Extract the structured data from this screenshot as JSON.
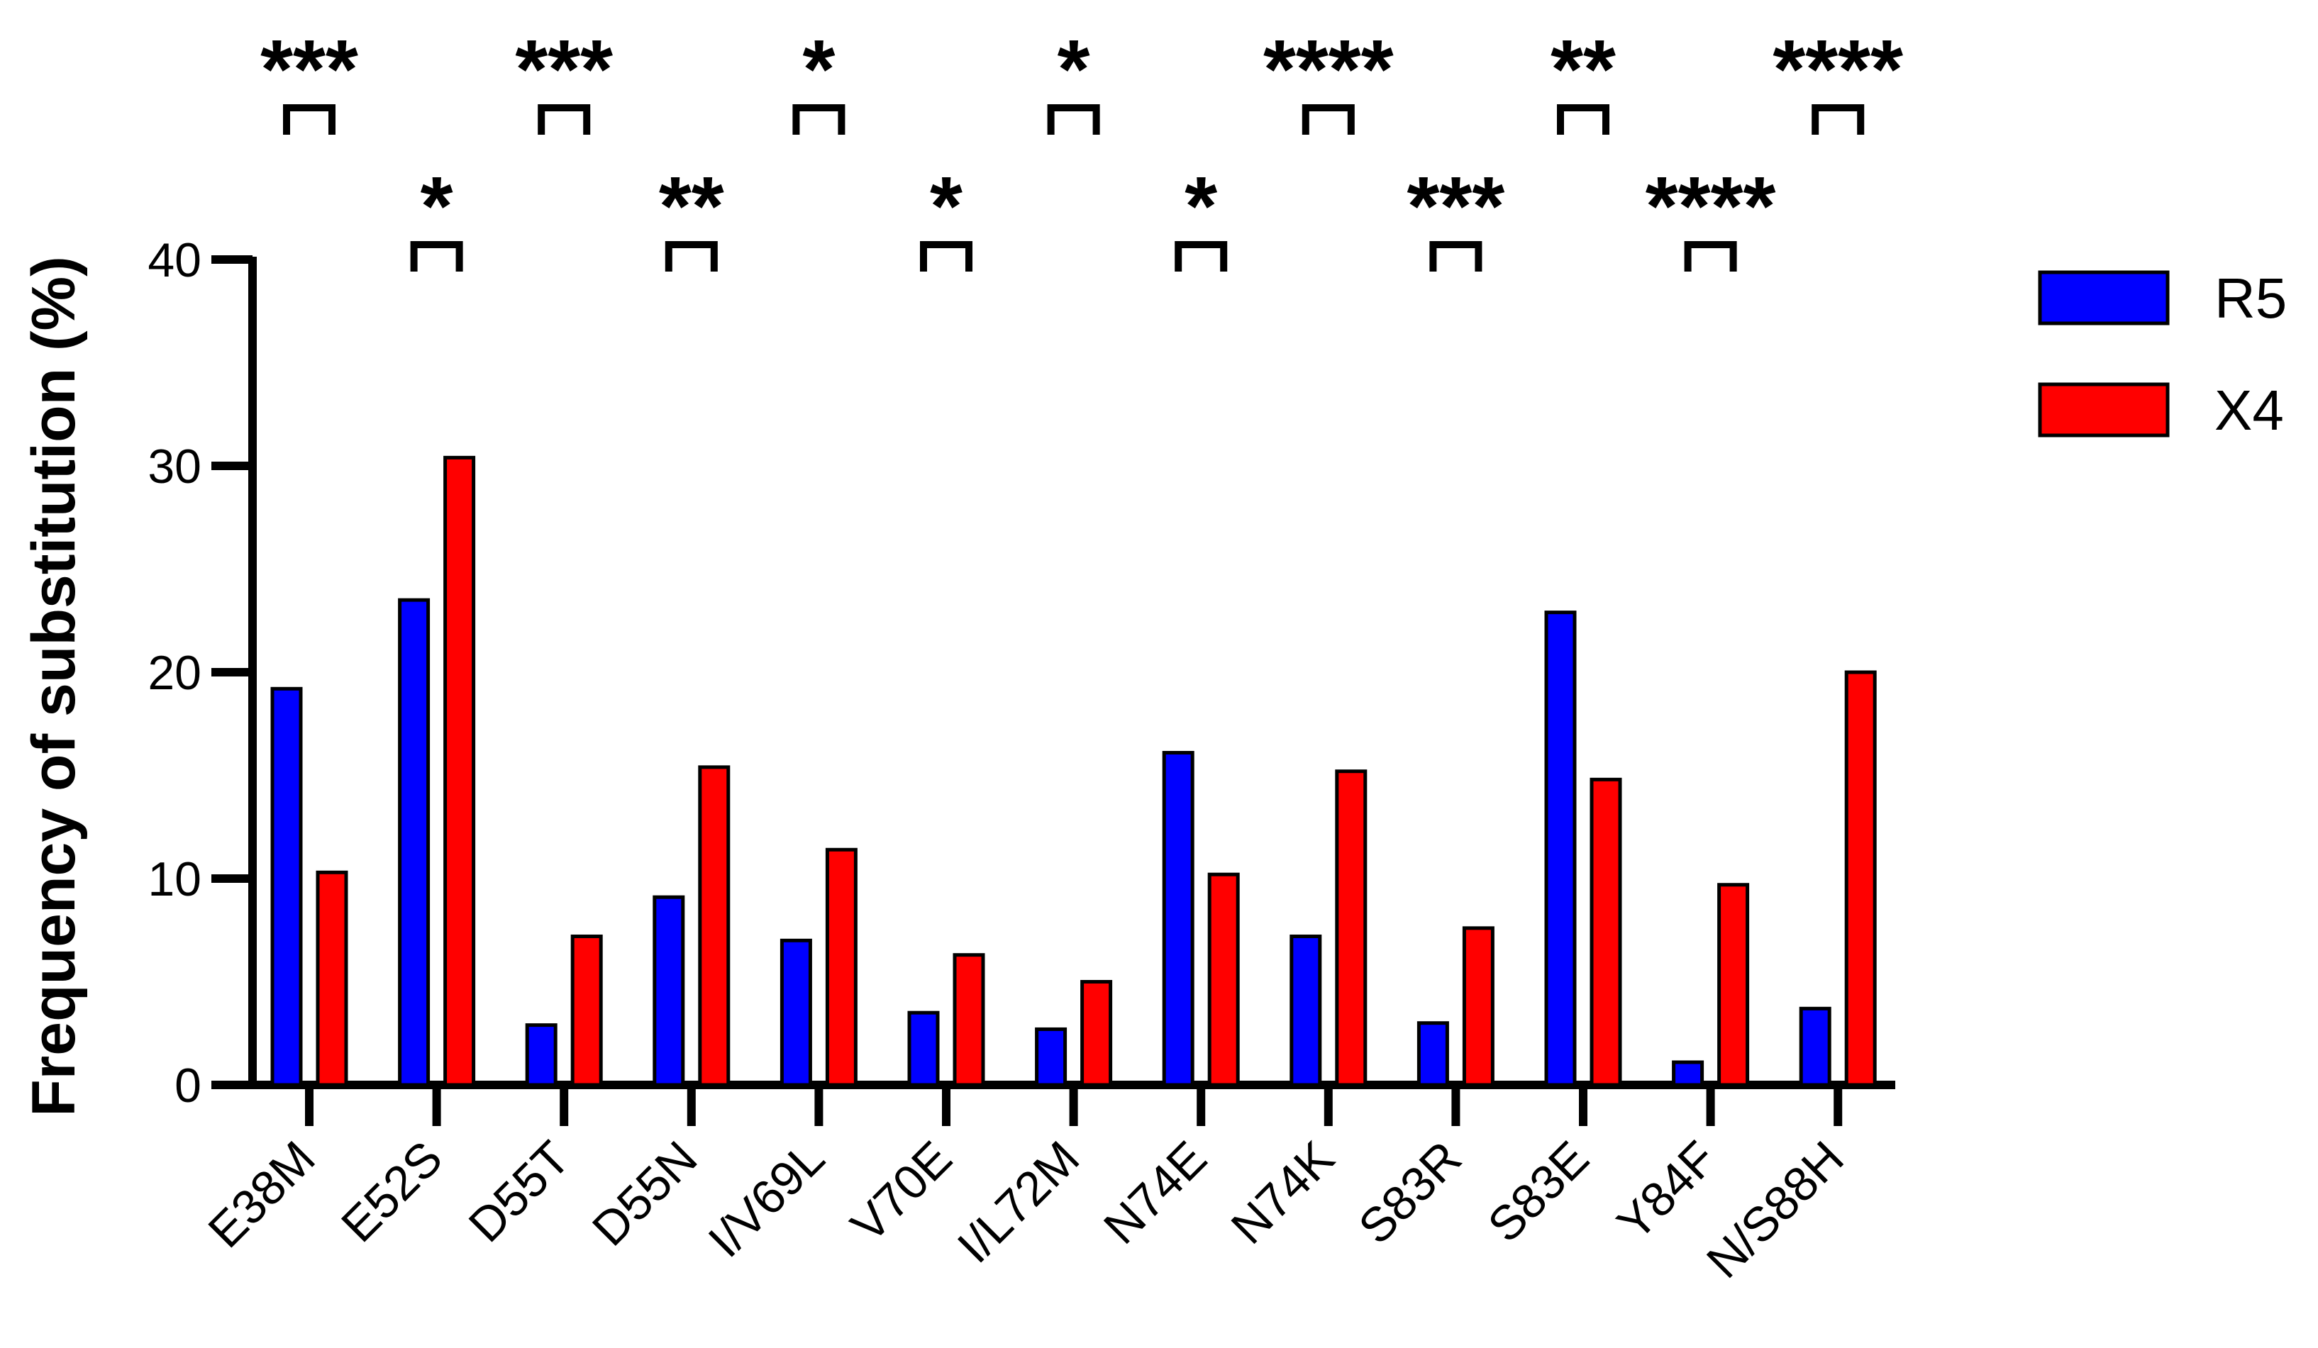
{
  "chart_data": {
    "type": "bar",
    "title": "",
    "xlabel": "",
    "ylabel": "Frequency of substitution (%)",
    "ylim": [
      0,
      40
    ],
    "yticks": [
      "0",
      "10",
      "20",
      "30",
      "40"
    ],
    "grid": false,
    "legend_position": "top-right",
    "categories": [
      "E38M",
      "E52S",
      "D55T",
      "D55N",
      "I/V69L",
      "V70E",
      "I/L72M",
      "N74E",
      "N74K",
      "S83R",
      "S83E",
      "Y84F",
      "N/S88H"
    ],
    "series": [
      {
        "name": "R5",
        "color": "#0000ff",
        "values": [
          19.2,
          23.5,
          2.9,
          9.1,
          7.0,
          3.5,
          2.7,
          16.1,
          7.2,
          3.0,
          22.9,
          1.1,
          3.7
        ]
      },
      {
        "name": "X4",
        "color": "#ff0000",
        "values": [
          10.3,
          30.4,
          7.2,
          15.4,
          11.4,
          6.3,
          5.0,
          10.2,
          15.2,
          7.6,
          14.8,
          9.7,
          20.0
        ]
      }
    ],
    "significance": [
      "***",
      "*",
      "***",
      "**",
      "*",
      "*",
      "*",
      "*",
      "****",
      "***",
      "**",
      "****",
      "****"
    ]
  }
}
